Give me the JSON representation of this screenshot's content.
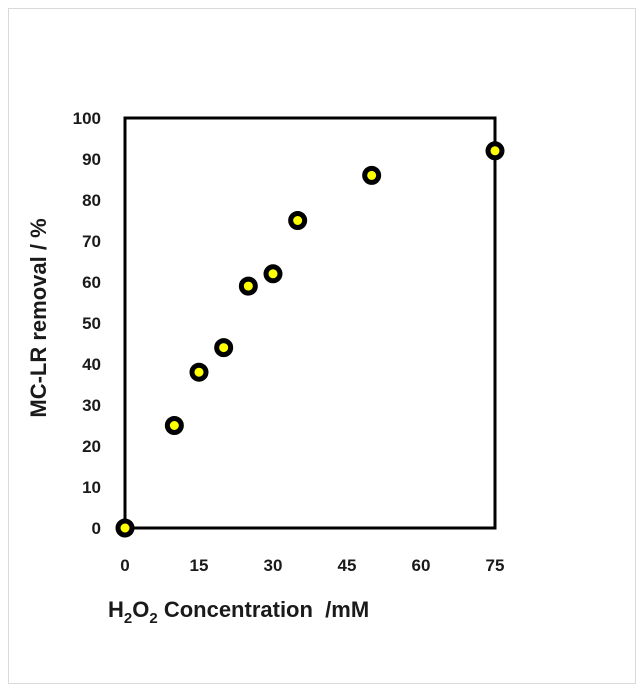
{
  "chart_data": {
    "type": "scatter",
    "x": [
      0,
      10,
      15,
      20,
      25,
      30,
      35,
      50,
      75
    ],
    "y": [
      0,
      25,
      38,
      44,
      59,
      62,
      75,
      86,
      92
    ],
    "xlim": [
      0,
      75
    ],
    "ylim": [
      0,
      100
    ],
    "x_tick_values": [
      0,
      15,
      30,
      45,
      60,
      75
    ],
    "x_tick_labels": [
      "0",
      "15",
      "30",
      "45",
      "60",
      "75"
    ],
    "y_tick_values": [
      0,
      10,
      20,
      30,
      40,
      50,
      60,
      70,
      80,
      90,
      100
    ],
    "y_tick_labels": [
      "0",
      "10",
      "20",
      "30",
      "40",
      "50",
      "60",
      "70",
      "80",
      "90",
      "100"
    ],
    "xlabel": {
      "prefix": "H",
      "sub1": "2",
      "mid": "O",
      "sub2": "2",
      "suffix": " Concentration  /mM"
    },
    "ylabel": "MC-LR removal  / %",
    "marker_fill": "#ffff00",
    "marker_stroke": "#000000",
    "grid": false,
    "legend": "none"
  }
}
